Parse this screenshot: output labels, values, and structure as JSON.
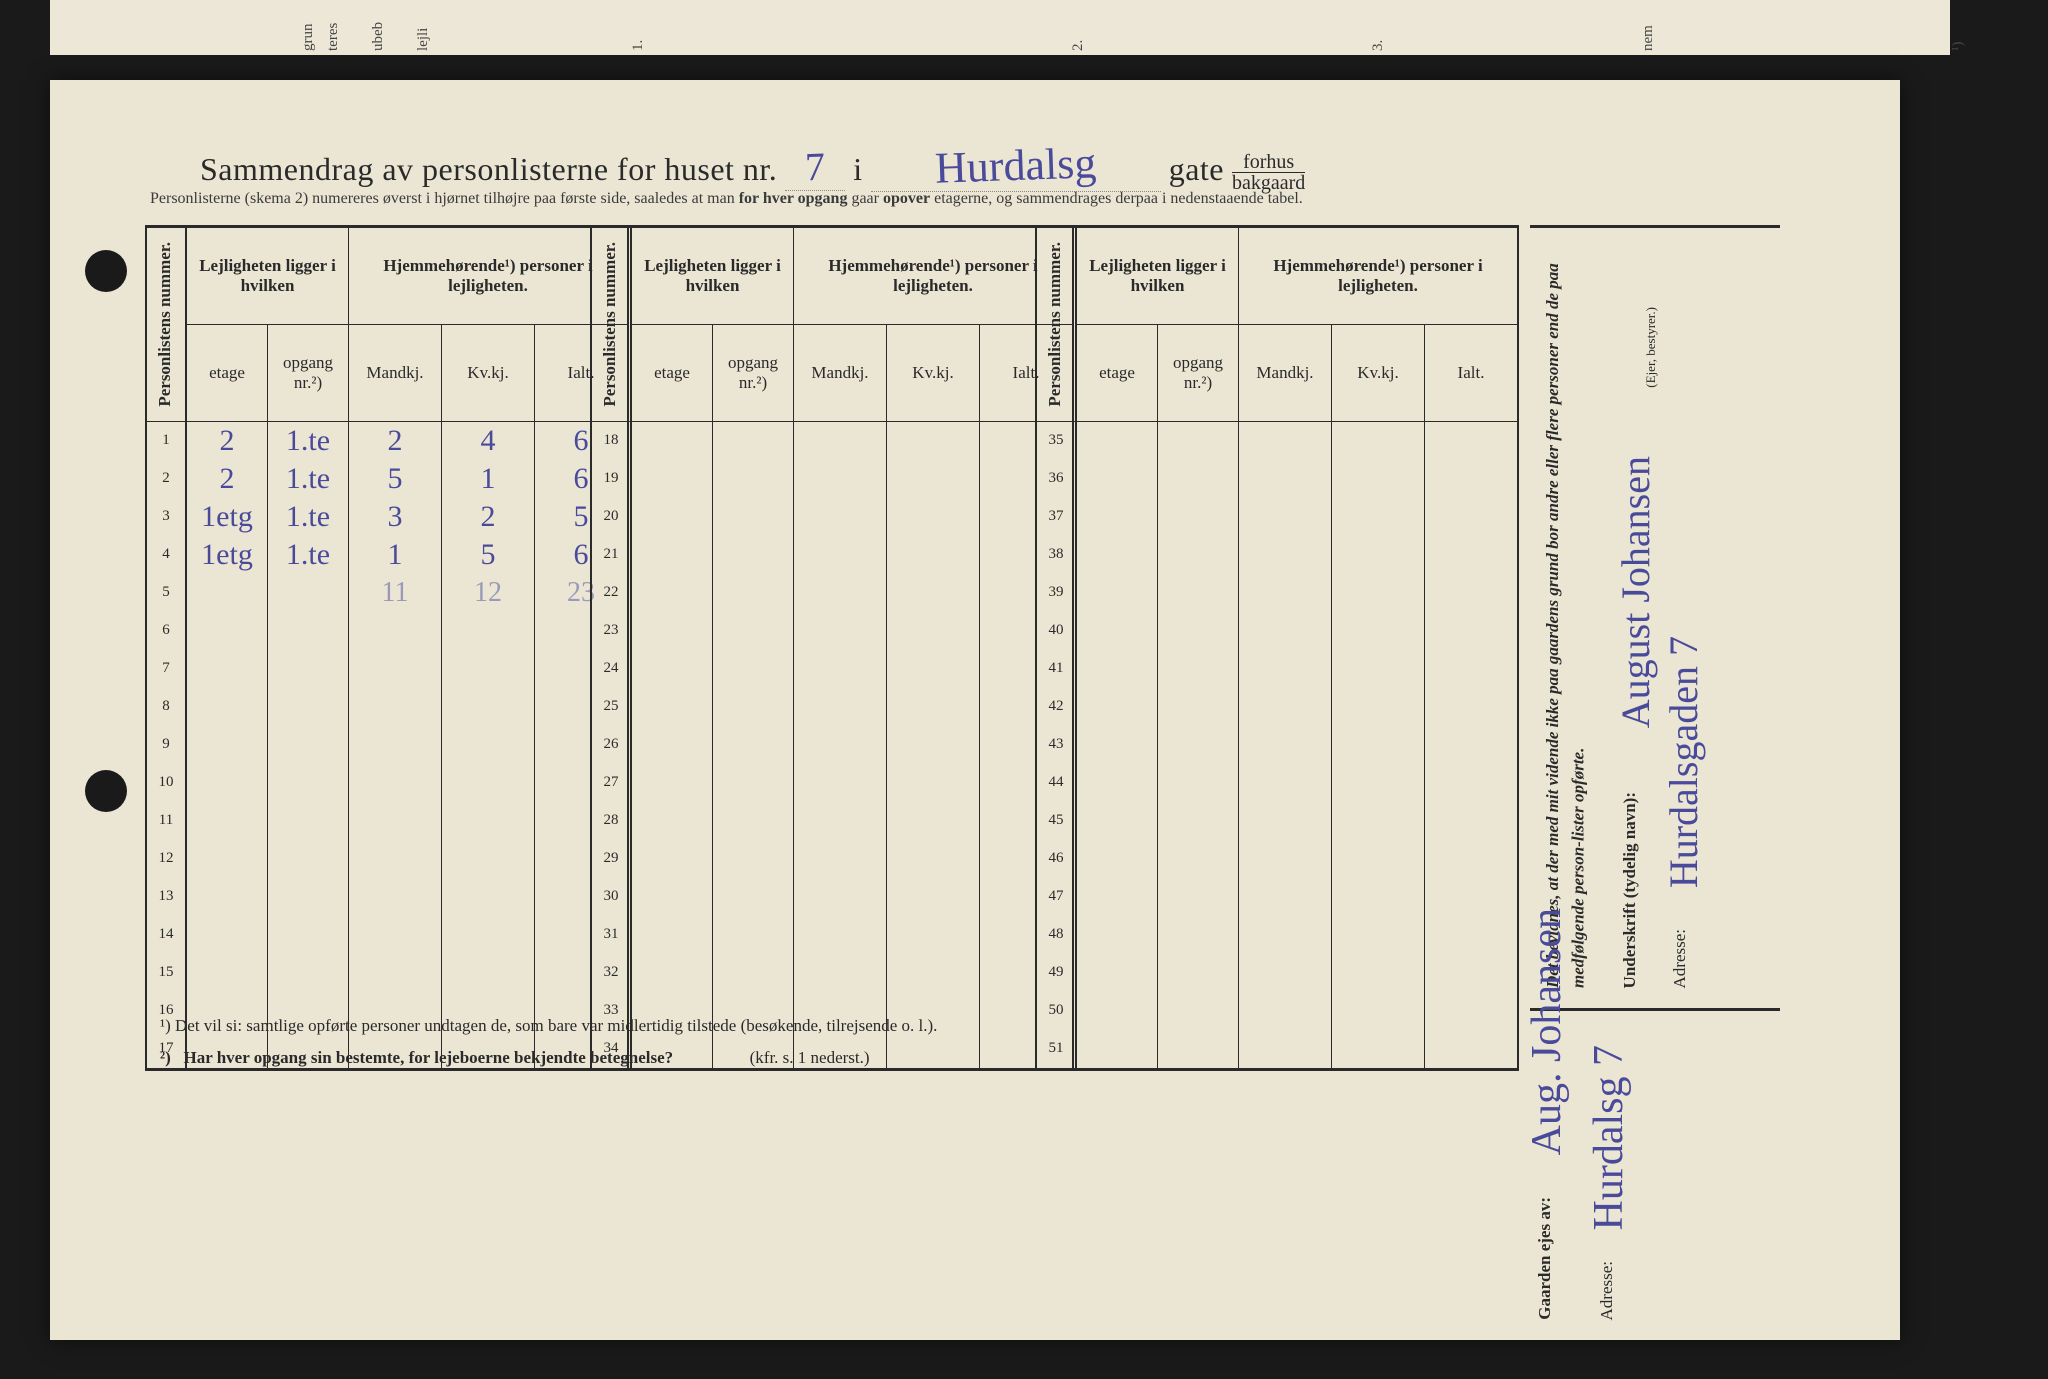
{
  "title": {
    "pre": "Sammendrag av personlisterne for huset nr.",
    "house_no": "7",
    "i": "i",
    "street": "Hurdalsg",
    "gate": "gate",
    "forhus": "forhus",
    "bakgaard": "bakgaard"
  },
  "subtitle": "Personlisterne (skema 2) numereres øverst i hjørnet tilhøjre paa første side, saaledes at man for hver opgang gaar opover etagerne, og sammendrages derpaa i nedenstaaende tabel.",
  "headers": {
    "personlistens": "Personlistens nummer.",
    "lejlighet": "Lejligheten ligger i hvilken",
    "hjemme": "Hjemmehørende¹) personer i lejligheten.",
    "etage": "etage",
    "opgang": "opgang nr.²)",
    "mandkj": "Mandkj.",
    "kvkj": "Kv.kj.",
    "ialt": "Ialt."
  },
  "rows1": [
    {
      "n": "1",
      "etage": "2",
      "opgang": "1.te",
      "m": "2",
      "k": "4",
      "i": "6"
    },
    {
      "n": "2",
      "etage": "2",
      "opgang": "1.te",
      "m": "5",
      "k": "1",
      "i": "6"
    },
    {
      "n": "3",
      "etage": "1etg",
      "opgang": "1.te",
      "m": "3",
      "k": "2",
      "i": "5"
    },
    {
      "n": "4",
      "etage": "1etg",
      "opgang": "1.te",
      "m": "1",
      "k": "5",
      "i": "6"
    },
    {
      "n": "5",
      "etage": "",
      "opgang": "",
      "m": "11",
      "k": "12",
      "i": "23",
      "light": true
    },
    {
      "n": "6"
    },
    {
      "n": "7"
    },
    {
      "n": "8"
    },
    {
      "n": "9"
    },
    {
      "n": "10"
    },
    {
      "n": "11"
    },
    {
      "n": "12"
    },
    {
      "n": "13"
    },
    {
      "n": "14"
    },
    {
      "n": "15"
    },
    {
      "n": "16"
    },
    {
      "n": "17"
    }
  ],
  "rows2": [
    {
      "n": "18"
    },
    {
      "n": "19"
    },
    {
      "n": "20"
    },
    {
      "n": "21"
    },
    {
      "n": "22"
    },
    {
      "n": "23"
    },
    {
      "n": "24"
    },
    {
      "n": "25"
    },
    {
      "n": "26"
    },
    {
      "n": "27"
    },
    {
      "n": "28"
    },
    {
      "n": "29"
    },
    {
      "n": "30"
    },
    {
      "n": "31"
    },
    {
      "n": "32"
    },
    {
      "n": "33"
    },
    {
      "n": "34"
    }
  ],
  "rows3": [
    {
      "n": "35"
    },
    {
      "n": "36"
    },
    {
      "n": "37"
    },
    {
      "n": "38"
    },
    {
      "n": "39"
    },
    {
      "n": "40"
    },
    {
      "n": "41"
    },
    {
      "n": "42"
    },
    {
      "n": "43"
    },
    {
      "n": "44"
    },
    {
      "n": "45"
    },
    {
      "n": "46"
    },
    {
      "n": "47"
    },
    {
      "n": "48"
    },
    {
      "n": "49"
    },
    {
      "n": "50"
    },
    {
      "n": "51"
    }
  ],
  "footnotes": {
    "f1": "¹)   Det vil si: samtlige opførte personer undtagen de, som bare var midlertidig tilstede (besøkende, tilrejsende o. l.).",
    "f2": "²)   Har hver opgang sin bestemte, for lejeboerne bekjendte betegnelse?",
    "f2ref": "(kfr. s. 1 nederst.)"
  },
  "attest": {
    "text": "Det bevidnes, at der med mit vidende ikke paa gaardens grund bor andre eller flere personer end de paa medfølgende person-lister opførte.",
    "underskrift_label": "Underskrift (tydelig navn):",
    "underskrift_value": "August Johansen",
    "eier_note": "(Ejer, bestyrer.)",
    "adresse_label": "Adresse:",
    "adresse_value": "Hurdalsgaden 7"
  },
  "owner": {
    "label": "Gaarden ejes av:",
    "name": "Aug. Johansen",
    "adresse_label": "Adresse:",
    "adresse_value": "Hurdalsg 7"
  },
  "edge_labels": [
    "grun",
    "teres",
    "ubeb",
    "lejli",
    "1.",
    "2.",
    "3.",
    "nem",
    "¹)"
  ],
  "colors": {
    "paper": "#ebe6d4",
    "ink": "#2a2a2a",
    "handwriting": "#4a4a9a",
    "background": "#1a1a1a"
  },
  "col_widths": {
    "num": 38,
    "etage": 72,
    "opgang": 72,
    "mkv": 84,
    "ialt": 84
  }
}
